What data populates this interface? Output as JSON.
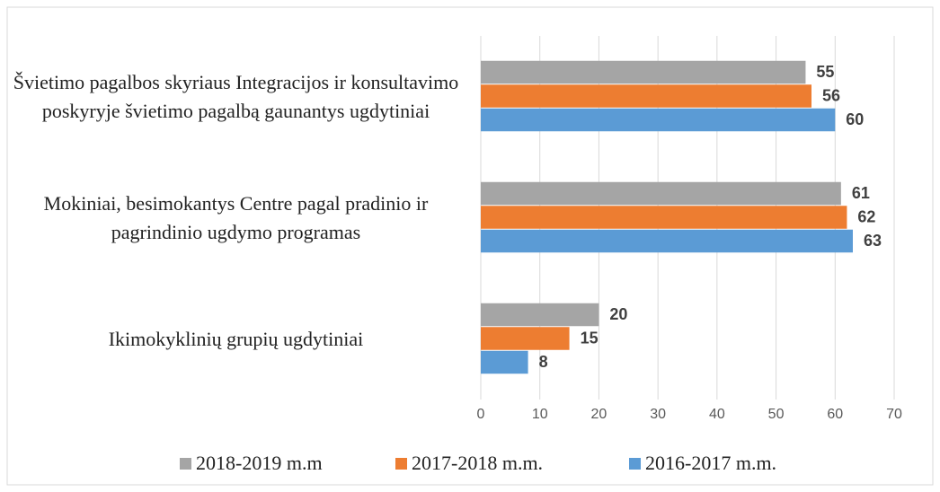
{
  "chart_data": {
    "type": "barh",
    "categories": [
      "Švietimo pagalbos skyriaus Integracijos ir konsultavimo poskyryje švietimo pagalbą gaunantys ugdytiniai",
      "Mokiniai, besimokantys Centre pagal pradinio ir pagrindinio ugdymo programas",
      "Ikimokyklinių grupių ugdytiniai"
    ],
    "series": [
      {
        "name": "2018-2019 m.m",
        "color": "#a5a5a5",
        "values": [
          55,
          61,
          20
        ]
      },
      {
        "name": "2017-2018 m.m.",
        "color": "#ed7d31",
        "values": [
          56,
          62,
          15
        ]
      },
      {
        "name": "2016-2017 m.m.",
        "color": "#5b9bd5",
        "values": [
          60,
          63,
          8
        ]
      }
    ],
    "xlim": [
      0,
      70
    ],
    "xticks": [
      0,
      10,
      20,
      30,
      40,
      50,
      60,
      70
    ],
    "grid": true,
    "legend": "bottom"
  }
}
